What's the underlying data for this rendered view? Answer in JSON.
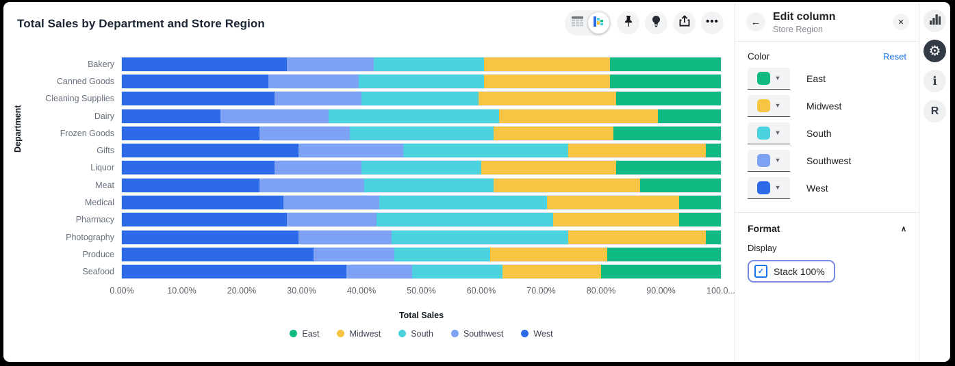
{
  "chart": {
    "title": "Total Sales by Department and Store Region",
    "toolbar": {
      "view_toggle": {
        "table_icon": "table-view",
        "chart_icon": "chart-view",
        "active": "chart-view"
      },
      "buttons": [
        "pin",
        "lightbulb",
        "share",
        "more"
      ],
      "more_glyph": "•••"
    },
    "chart_data": {
      "type": "bar",
      "orientation": "horizontal",
      "stacked": true,
      "stack_100_percent": true,
      "title": "Total Sales by Department and Store Region",
      "xlabel": "Total Sales",
      "ylabel": "Department",
      "x_ticks": [
        "0.00%",
        "10.00%",
        "20.00%",
        "30.00%",
        "40.00%",
        "50.00%",
        "60.00%",
        "70.00%",
        "80.00%",
        "90.00%",
        "100.0..."
      ],
      "xlim": [
        0,
        100
      ],
      "categories": [
        "Bakery",
        "Canned Goods",
        "Cleaning Supplies",
        "Dairy",
        "Frozen Goods",
        "Gifts",
        "Liquor",
        "Meat",
        "Medical",
        "Pharmacy",
        "Photography",
        "Produce",
        "Seafood"
      ],
      "segment_order": [
        "West",
        "Southwest",
        "South",
        "Midwest",
        "East"
      ],
      "legend_order": [
        "East",
        "Midwest",
        "South",
        "Southwest",
        "West"
      ],
      "legend_position": "bottom",
      "series": [
        {
          "name": "East",
          "color": "#10B981",
          "values": [
            18.5,
            18.5,
            17.5,
            10.5,
            18,
            2.5,
            17.5,
            13.5,
            7,
            7,
            2.5,
            19,
            20
          ]
        },
        {
          "name": "Midwest",
          "color": "#F7C443",
          "values": [
            21,
            21,
            23,
            26.5,
            20,
            23,
            22.5,
            24.5,
            22,
            21,
            23,
            19.5,
            16.5
          ]
        },
        {
          "name": "South",
          "color": "#4CD2DF",
          "values": [
            18.5,
            21,
            19.5,
            28.5,
            24,
            27.5,
            20,
            21.5,
            28,
            29.5,
            29.5,
            16,
            15
          ]
        },
        {
          "name": "Southwest",
          "color": "#7EA2F3",
          "values": [
            14.5,
            15,
            14.5,
            18,
            15,
            17.5,
            14.5,
            17.5,
            16,
            15,
            15.5,
            13.5,
            11
          ]
        },
        {
          "name": "West",
          "color": "#2D6AE8",
          "values": [
            27.5,
            24.5,
            25.5,
            16.5,
            23,
            29.5,
            25.5,
            23,
            27,
            27.5,
            29.5,
            32,
            37.5
          ]
        }
      ]
    }
  },
  "panel": {
    "back_glyph": "←",
    "title": "Edit column",
    "subtitle": "Store Region",
    "close_glyph": "✕",
    "color_section": {
      "label": "Color",
      "reset_label": "Reset",
      "caret_glyph": "▼",
      "items": [
        {
          "name": "East",
          "color": "#10B981"
        },
        {
          "name": "Midwest",
          "color": "#F7C443"
        },
        {
          "name": "South",
          "color": "#4CD2DF"
        },
        {
          "name": "Southwest",
          "color": "#7EA2F3"
        },
        {
          "name": "West",
          "color": "#2D6AE8"
        }
      ]
    },
    "format_section": {
      "label": "Format",
      "collapse_glyph": "∧",
      "display_label": "Display",
      "checkbox_label": "Stack 100%",
      "checkbox_checked": true,
      "check_glyph": "✓",
      "focus_ring_color": "#7b87e6",
      "accent_color": "#1a73e8"
    }
  },
  "side_toolbar": {
    "items": [
      "chart",
      "settings",
      "info",
      "r-logo"
    ],
    "info_glyph": "i",
    "r_glyph": "R",
    "gear_glyph": "⚙"
  }
}
